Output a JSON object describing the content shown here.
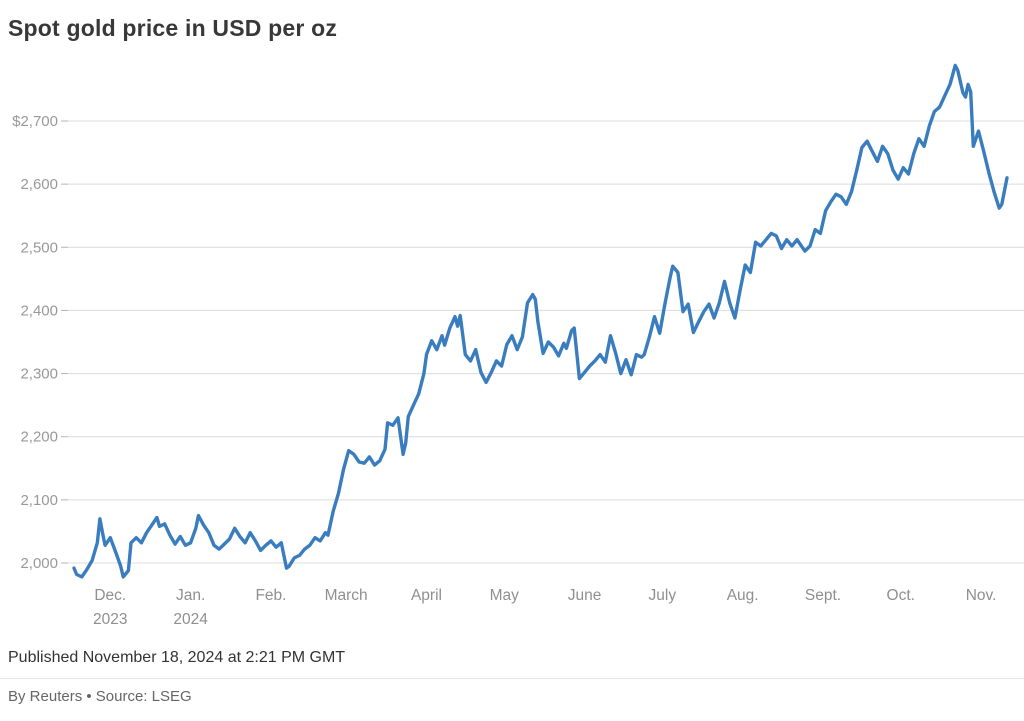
{
  "title": "Spot gold price in USD per oz",
  "footer": {
    "published": "Published November 18, 2024 at 2:21 PM GMT",
    "byline": "By Reuters • Source: LSEG"
  },
  "chart_data": {
    "type": "line",
    "title": "Spot gold price in USD per oz",
    "series_name": "Spot gold price (USD per oz)",
    "xlabel": "",
    "ylabel": "USD per oz",
    "ylim": [
      1960,
      2800
    ],
    "grid": "horizontal",
    "legend": "none",
    "line_color": "#3a7dbf",
    "grid_color": "#dcdcdc",
    "tick_color": "#b5b5b5",
    "label_color": "#999999",
    "y_ticks": [
      {
        "value": 2700,
        "label": "$2,700"
      },
      {
        "value": 2600,
        "label": "2,600"
      },
      {
        "value": 2500,
        "label": "2,500"
      },
      {
        "value": 2400,
        "label": "2,400"
      },
      {
        "value": 2300,
        "label": "2,300"
      },
      {
        "value": 2200,
        "label": "2,200"
      },
      {
        "value": 2100,
        "label": "2,100"
      },
      {
        "value": 2000,
        "label": "2,000"
      }
    ],
    "x_ticks": [
      {
        "day": 14,
        "label": "Dec.",
        "sub": "2023"
      },
      {
        "day": 45,
        "label": "Jan.",
        "sub": "2024"
      },
      {
        "day": 76,
        "label": "Feb.",
        "sub": ""
      },
      {
        "day": 105,
        "label": "March",
        "sub": ""
      },
      {
        "day": 136,
        "label": "April",
        "sub": ""
      },
      {
        "day": 166,
        "label": "May",
        "sub": ""
      },
      {
        "day": 197,
        "label": "June",
        "sub": ""
      },
      {
        "day": 227,
        "label": "July",
        "sub": ""
      },
      {
        "day": 258,
        "label": "Aug.",
        "sub": ""
      },
      {
        "day": 289,
        "label": "Sept.",
        "sub": ""
      },
      {
        "day": 319,
        "label": "Oct.",
        "sub": ""
      },
      {
        "day": 350,
        "label": "Nov.",
        "sub": ""
      }
    ],
    "x_range_days": [
      0,
      360
    ],
    "x_start_date": "2023-11-24",
    "x_end_date": "2024-11-18",
    "points": [
      [
        0,
        1992
      ],
      [
        1,
        1982
      ],
      [
        3,
        1978
      ],
      [
        5,
        1990
      ],
      [
        7,
        2004
      ],
      [
        9,
        2032
      ],
      [
        10,
        2070
      ],
      [
        11,
        2048
      ],
      [
        12,
        2028
      ],
      [
        14,
        2040
      ],
      [
        16,
        2018
      ],
      [
        18,
        1995
      ],
      [
        19,
        1978
      ],
      [
        21,
        1988
      ],
      [
        22,
        2032
      ],
      [
        24,
        2040
      ],
      [
        26,
        2032
      ],
      [
        28,
        2048
      ],
      [
        30,
        2060
      ],
      [
        32,
        2072
      ],
      [
        33,
        2058
      ],
      [
        35,
        2062
      ],
      [
        37,
        2044
      ],
      [
        39,
        2030
      ],
      [
        41,
        2042
      ],
      [
        43,
        2028
      ],
      [
        45,
        2032
      ],
      [
        47,
        2055
      ],
      [
        48,
        2075
      ],
      [
        50,
        2060
      ],
      [
        52,
        2048
      ],
      [
        54,
        2028
      ],
      [
        56,
        2022
      ],
      [
        58,
        2030
      ],
      [
        60,
        2038
      ],
      [
        62,
        2055
      ],
      [
        64,
        2042
      ],
      [
        66,
        2032
      ],
      [
        68,
        2048
      ],
      [
        70,
        2035
      ],
      [
        72,
        2020
      ],
      [
        74,
        2028
      ],
      [
        76,
        2035
      ],
      [
        78,
        2025
      ],
      [
        80,
        2032
      ],
      [
        82,
        1992
      ],
      [
        83,
        1995
      ],
      [
        85,
        2008
      ],
      [
        87,
        2012
      ],
      [
        89,
        2022
      ],
      [
        91,
        2028
      ],
      [
        93,
        2040
      ],
      [
        95,
        2035
      ],
      [
        97,
        2048
      ],
      [
        98,
        2044
      ],
      [
        100,
        2082
      ],
      [
        102,
        2110
      ],
      [
        104,
        2148
      ],
      [
        106,
        2178
      ],
      [
        108,
        2172
      ],
      [
        110,
        2160
      ],
      [
        112,
        2158
      ],
      [
        114,
        2168
      ],
      [
        116,
        2155
      ],
      [
        118,
        2162
      ],
      [
        120,
        2180
      ],
      [
        121,
        2222
      ],
      [
        123,
        2218
      ],
      [
        125,
        2230
      ],
      [
        127,
        2172
      ],
      [
        128,
        2190
      ],
      [
        129,
        2232
      ],
      [
        131,
        2250
      ],
      [
        133,
        2268
      ],
      [
        135,
        2300
      ],
      [
        136,
        2330
      ],
      [
        138,
        2352
      ],
      [
        140,
        2338
      ],
      [
        142,
        2360
      ],
      [
        143,
        2345
      ],
      [
        145,
        2372
      ],
      [
        147,
        2390
      ],
      [
        148,
        2375
      ],
      [
        149,
        2392
      ],
      [
        151,
        2330
      ],
      [
        153,
        2320
      ],
      [
        155,
        2338
      ],
      [
        157,
        2302
      ],
      [
        159,
        2286
      ],
      [
        161,
        2302
      ],
      [
        163,
        2320
      ],
      [
        165,
        2312
      ],
      [
        167,
        2346
      ],
      [
        169,
        2360
      ],
      [
        171,
        2338
      ],
      [
        173,
        2358
      ],
      [
        175,
        2412
      ],
      [
        177,
        2425
      ],
      [
        178,
        2418
      ],
      [
        179,
        2382
      ],
      [
        181,
        2332
      ],
      [
        183,
        2350
      ],
      [
        185,
        2342
      ],
      [
        187,
        2328
      ],
      [
        189,
        2348
      ],
      [
        190,
        2340
      ],
      [
        192,
        2368
      ],
      [
        193,
        2372
      ],
      [
        195,
        2292
      ],
      [
        197,
        2302
      ],
      [
        199,
        2312
      ],
      [
        201,
        2320
      ],
      [
        203,
        2330
      ],
      [
        205,
        2318
      ],
      [
        207,
        2360
      ],
      [
        209,
        2332
      ],
      [
        211,
        2300
      ],
      [
        213,
        2322
      ],
      [
        215,
        2298
      ],
      [
        217,
        2330
      ],
      [
        219,
        2326
      ],
      [
        220,
        2330
      ],
      [
        222,
        2358
      ],
      [
        224,
        2390
      ],
      [
        226,
        2364
      ],
      [
        228,
        2410
      ],
      [
        230,
        2452
      ],
      [
        231,
        2470
      ],
      [
        233,
        2460
      ],
      [
        235,
        2398
      ],
      [
        237,
        2410
      ],
      [
        239,
        2365
      ],
      [
        241,
        2382
      ],
      [
        243,
        2398
      ],
      [
        245,
        2410
      ],
      [
        247,
        2388
      ],
      [
        249,
        2412
      ],
      [
        251,
        2446
      ],
      [
        253,
        2412
      ],
      [
        255,
        2388
      ],
      [
        257,
        2432
      ],
      [
        259,
        2472
      ],
      [
        261,
        2460
      ],
      [
        263,
        2508
      ],
      [
        265,
        2502
      ],
      [
        267,
        2512
      ],
      [
        269,
        2522
      ],
      [
        271,
        2518
      ],
      [
        273,
        2498
      ],
      [
        275,
        2512
      ],
      [
        277,
        2502
      ],
      [
        279,
        2512
      ],
      [
        281,
        2500
      ],
      [
        282,
        2494
      ],
      [
        284,
        2502
      ],
      [
        286,
        2528
      ],
      [
        288,
        2522
      ],
      [
        290,
        2558
      ],
      [
        292,
        2572
      ],
      [
        294,
        2584
      ],
      [
        296,
        2580
      ],
      [
        298,
        2568
      ],
      [
        300,
        2588
      ],
      [
        302,
        2622
      ],
      [
        304,
        2658
      ],
      [
        306,
        2668
      ],
      [
        308,
        2652
      ],
      [
        310,
        2636
      ],
      [
        312,
        2660
      ],
      [
        314,
        2648
      ],
      [
        316,
        2622
      ],
      [
        318,
        2608
      ],
      [
        320,
        2626
      ],
      [
        322,
        2616
      ],
      [
        324,
        2648
      ],
      [
        326,
        2672
      ],
      [
        328,
        2660
      ],
      [
        330,
        2692
      ],
      [
        332,
        2715
      ],
      [
        334,
        2722
      ],
      [
        336,
        2740
      ],
      [
        338,
        2758
      ],
      [
        340,
        2788
      ],
      [
        341,
        2780
      ],
      [
        343,
        2745
      ],
      [
        344,
        2738
      ],
      [
        345,
        2758
      ],
      [
        346,
        2746
      ],
      [
        347,
        2660
      ],
      [
        349,
        2684
      ],
      [
        351,
        2652
      ],
      [
        353,
        2618
      ],
      [
        355,
        2588
      ],
      [
        357,
        2562
      ],
      [
        358,
        2568
      ],
      [
        360,
        2610
      ]
    ]
  }
}
